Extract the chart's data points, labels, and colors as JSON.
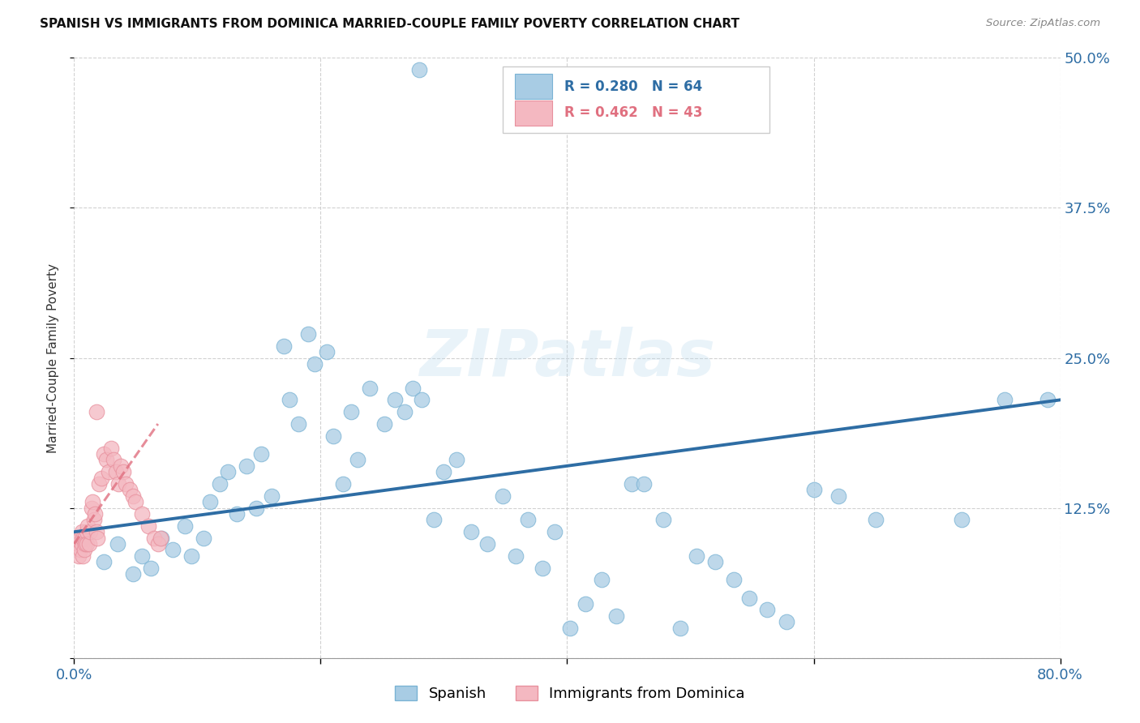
{
  "title": "SPANISH VS IMMIGRANTS FROM DOMINICA MARRIED-COUPLE FAMILY POVERTY CORRELATION CHART",
  "source": "Source: ZipAtlas.com",
  "ylabel": "Married-Couple Family Poverty",
  "xlim": [
    0.0,
    0.8
  ],
  "ylim": [
    0.0,
    0.5
  ],
  "blue_color": "#a8cce4",
  "blue_edge_color": "#7ab3d4",
  "pink_color": "#f4b8c1",
  "pink_edge_color": "#e8909d",
  "blue_line_color": "#2e6da4",
  "pink_line_color": "#e07080",
  "grid_color": "#cccccc",
  "blue_trend_x": [
    0.0,
    0.8
  ],
  "blue_trend_y": [
    0.105,
    0.215
  ],
  "pink_trend_x": [
    0.0,
    0.068
  ],
  "pink_trend_y": [
    0.095,
    0.195
  ],
  "blue_x": [
    0.024,
    0.035,
    0.048,
    0.055,
    0.062,
    0.071,
    0.08,
    0.09,
    0.095,
    0.105,
    0.11,
    0.118,
    0.125,
    0.132,
    0.14,
    0.148,
    0.152,
    0.16,
    0.17,
    0.175,
    0.182,
    0.19,
    0.195,
    0.205,
    0.21,
    0.218,
    0.225,
    0.23,
    0.24,
    0.252,
    0.26,
    0.268,
    0.275,
    0.282,
    0.292,
    0.3,
    0.31,
    0.322,
    0.335,
    0.348,
    0.358,
    0.368,
    0.38,
    0.39,
    0.402,
    0.415,
    0.428,
    0.44,
    0.452,
    0.462,
    0.478,
    0.492,
    0.505,
    0.52,
    0.535,
    0.548,
    0.562,
    0.578,
    0.6,
    0.62,
    0.65,
    0.72,
    0.755,
    0.79
  ],
  "blue_y": [
    0.08,
    0.095,
    0.07,
    0.085,
    0.075,
    0.1,
    0.09,
    0.11,
    0.085,
    0.1,
    0.13,
    0.145,
    0.155,
    0.12,
    0.16,
    0.125,
    0.17,
    0.135,
    0.26,
    0.215,
    0.195,
    0.27,
    0.245,
    0.255,
    0.185,
    0.145,
    0.205,
    0.165,
    0.225,
    0.195,
    0.215,
    0.205,
    0.225,
    0.215,
    0.115,
    0.155,
    0.165,
    0.105,
    0.095,
    0.135,
    0.085,
    0.115,
    0.075,
    0.105,
    0.025,
    0.045,
    0.065,
    0.035,
    0.145,
    0.145,
    0.115,
    0.025,
    0.085,
    0.08,
    0.065,
    0.05,
    0.04,
    0.03,
    0.14,
    0.135,
    0.115,
    0.115,
    0.215,
    0.215
  ],
  "blue_outlier_x": [
    0.28
  ],
  "blue_outlier_y": [
    0.49
  ],
  "pink_x": [
    0.003,
    0.004,
    0.005,
    0.005,
    0.006,
    0.006,
    0.007,
    0.007,
    0.008,
    0.008,
    0.009,
    0.01,
    0.01,
    0.011,
    0.012,
    0.013,
    0.014,
    0.015,
    0.016,
    0.017,
    0.018,
    0.019,
    0.02,
    0.022,
    0.024,
    0.026,
    0.028,
    0.03,
    0.032,
    0.034,
    0.036,
    0.038,
    0.04,
    0.042,
    0.045,
    0.048,
    0.05,
    0.055,
    0.06,
    0.065,
    0.068,
    0.07
  ],
  "pink_y": [
    0.095,
    0.085,
    0.09,
    0.1,
    0.095,
    0.105,
    0.085,
    0.1,
    0.09,
    0.1,
    0.095,
    0.105,
    0.095,
    0.11,
    0.095,
    0.105,
    0.125,
    0.13,
    0.115,
    0.12,
    0.105,
    0.1,
    0.145,
    0.15,
    0.17,
    0.165,
    0.155,
    0.175,
    0.165,
    0.155,
    0.145,
    0.16,
    0.155,
    0.145,
    0.14,
    0.135,
    0.13,
    0.12,
    0.11,
    0.1,
    0.095,
    0.1
  ],
  "pink_outlier_x": [
    0.018
  ],
  "pink_outlier_y": [
    0.205
  ]
}
